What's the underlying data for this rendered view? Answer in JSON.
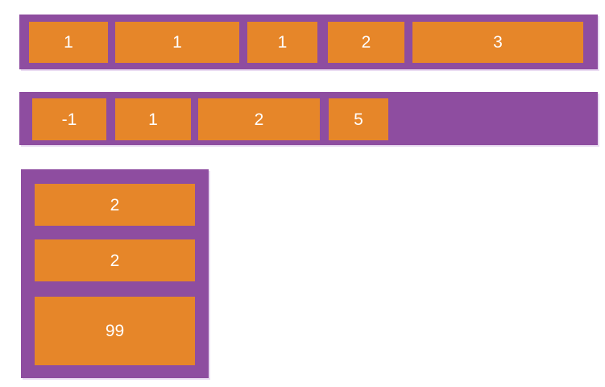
{
  "colors": {
    "page_background": "#FFFFFF",
    "container": "#8E4DA0",
    "item": "#E68629",
    "label": "#FFFFFF",
    "container_edge": "#EADCF2"
  },
  "containers": [
    {
      "direction": "row",
      "items": [
        "1",
        "1",
        "1",
        "2",
        "3"
      ]
    },
    {
      "direction": "row",
      "items": [
        "-1",
        "1",
        "2",
        "5"
      ]
    },
    {
      "direction": "column",
      "items": [
        "2",
        "2",
        "99"
      ]
    }
  ]
}
